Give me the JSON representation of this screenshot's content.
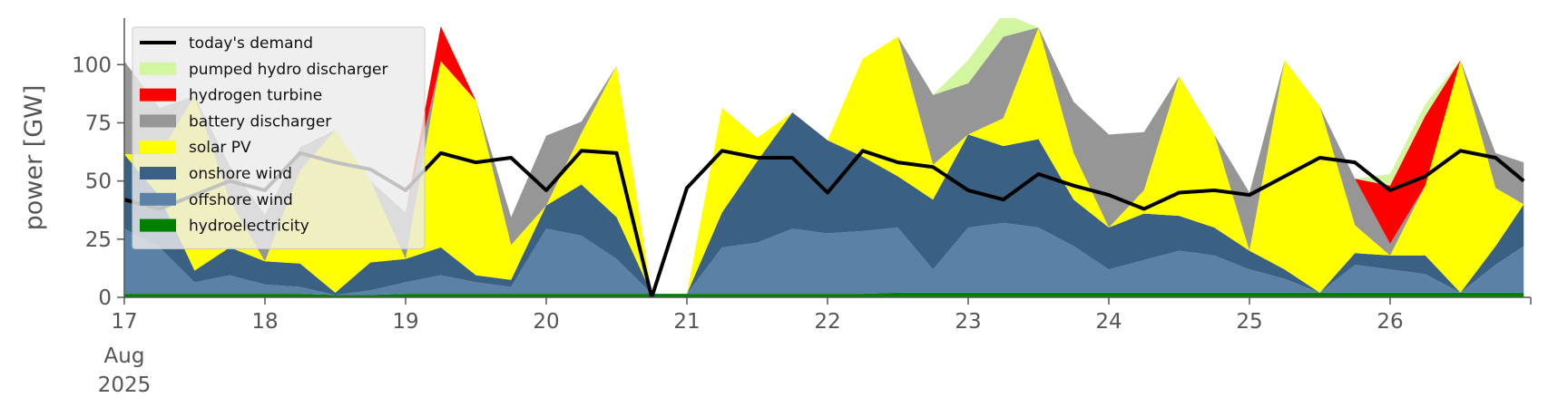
{
  "chart_data": {
    "type": "area",
    "title": "",
    "xlabel": "",
    "ylabel": "power [GW]",
    "ylim": [
      0,
      120
    ],
    "y_ticks": [
      0,
      25,
      50,
      75,
      100
    ],
    "x_ticks": [
      {
        "label": "17",
        "day": 17
      },
      {
        "label": "18",
        "day": 18
      },
      {
        "label": "19",
        "day": 19
      },
      {
        "label": "20",
        "day": 20
      },
      {
        "label": "21",
        "day": 21
      },
      {
        "label": "22",
        "day": 22
      },
      {
        "label": "23",
        "day": 23
      },
      {
        "label": "24",
        "day": 24
      },
      {
        "label": "25",
        "day": 25
      },
      {
        "label": "26",
        "day": 26
      }
    ],
    "x_month_label": "Aug",
    "x_year_label": "2025",
    "grid": false,
    "legend_position": "top-left",
    "stack_order": [
      "hydroelectricity",
      "offshore wind",
      "onshore wind",
      "solar PV",
      "battery discharger",
      "hydrogen turbine",
      "pumped hydro discharger"
    ],
    "day_values": [
      17,
      17.25,
      17.5,
      17.75,
      18,
      18.25,
      18.5,
      18.75,
      19,
      19.25,
      19.5,
      19.75,
      20,
      20.25,
      20.5,
      20.75,
      21,
      21.25,
      21.5,
      21.75,
      22,
      22.25,
      22.5,
      22.75,
      23,
      23.25,
      23.5,
      23.75,
      24,
      24.25,
      24.5,
      24.75,
      25,
      25.25,
      25.5,
      25.75,
      26,
      26.25,
      26.5,
      26.75,
      26.95
    ],
    "series": [
      {
        "name": "hydroelectricity",
        "color": "#008000",
        "values": [
          1.5,
          1.5,
          1.5,
          1.5,
          1.5,
          1.5,
          1,
          1,
          1.5,
          1.5,
          1.5,
          1.5,
          1.5,
          1.5,
          1.5,
          1.5,
          1.5,
          1.5,
          1.5,
          1.5,
          1.5,
          1.5,
          2,
          2,
          2,
          2,
          2,
          2,
          2,
          2,
          2,
          2,
          2,
          2,
          2,
          2,
          2,
          2,
          2,
          2,
          2
        ]
      },
      {
        "name": "offshore wind",
        "color": "#5b82a6",
        "values": [
          28,
          20,
          5,
          8,
          4,
          3,
          0,
          2,
          5,
          8,
          5,
          3,
          28,
          25,
          15,
          0,
          0,
          20,
          22,
          28,
          26,
          27,
          28,
          10,
          28,
          30,
          28,
          20,
          10,
          14,
          18,
          16,
          10,
          6,
          0,
          12,
          10,
          8,
          0,
          12,
          20
        ]
      },
      {
        "name": "onshore wind",
        "color": "#3a6083",
        "values": [
          32,
          22,
          5,
          12,
          10,
          10,
          1,
          12,
          10,
          12,
          3,
          3,
          10,
          22,
          18,
          0,
          0,
          15,
          35,
          50,
          40,
          32,
          22,
          30,
          40,
          33,
          38,
          20,
          18,
          20,
          15,
          12,
          8,
          4,
          0,
          5,
          6,
          8,
          0,
          8,
          18
        ]
      },
      {
        "name": "solar PV",
        "color": "#ffff00",
        "values": [
          0,
          18,
          75,
          20,
          0,
          40,
          70,
          35,
          0,
          80,
          75,
          15,
          0,
          22,
          65,
          0,
          0,
          45,
          10,
          0,
          0,
          42,
          60,
          15,
          0,
          12,
          48,
          20,
          0,
          10,
          60,
          40,
          0,
          90,
          80,
          12,
          0,
          30,
          100,
          25,
          0
        ]
      },
      {
        "name": "battery discharger",
        "color": "#969696",
        "values": [
          40,
          20,
          0,
          15,
          20,
          10,
          0,
          0,
          20,
          0,
          0,
          12,
          30,
          5,
          0,
          0,
          0,
          0,
          0,
          0,
          0,
          0,
          0,
          30,
          22,
          35,
          0,
          22,
          40,
          25,
          0,
          0,
          25,
          0,
          0,
          20,
          5,
          0,
          0,
          15,
          18
        ]
      },
      {
        "name": "hydrogen turbine",
        "color": "#ff0000",
        "values": [
          0,
          0,
          0,
          0,
          0,
          0,
          0,
          0,
          0,
          15,
          0,
          0,
          0,
          0,
          0,
          0,
          0,
          0,
          0,
          0,
          0,
          0,
          0,
          0,
          0,
          0,
          0,
          0,
          0,
          0,
          0,
          0,
          0,
          0,
          0,
          0,
          25,
          30,
          0,
          0,
          0
        ]
      },
      {
        "name": "pumped hydro discharger",
        "color": "#d2f5a0",
        "values": [
          0,
          0,
          0,
          0,
          0,
          0,
          0,
          0,
          0,
          0,
          0,
          0,
          0,
          0,
          0,
          0,
          0,
          0,
          0,
          0,
          0,
          0,
          0,
          0,
          10,
          10,
          0,
          0,
          0,
          0,
          0,
          0,
          0,
          0,
          0,
          0,
          5,
          5,
          0,
          0,
          0
        ]
      },
      {
        "name": "today's demand",
        "color": "#000000",
        "kind": "line",
        "values": [
          42,
          38,
          44,
          50,
          46,
          62,
          58,
          55,
          46,
          62,
          58,
          60,
          46,
          63,
          62,
          0,
          47,
          63,
          60,
          60,
          45,
          63,
          58,
          56,
          46,
          42,
          53,
          48,
          44,
          38,
          45,
          46,
          44,
          52,
          60,
          58,
          46,
          52,
          63,
          60,
          50
        ]
      }
    ]
  }
}
